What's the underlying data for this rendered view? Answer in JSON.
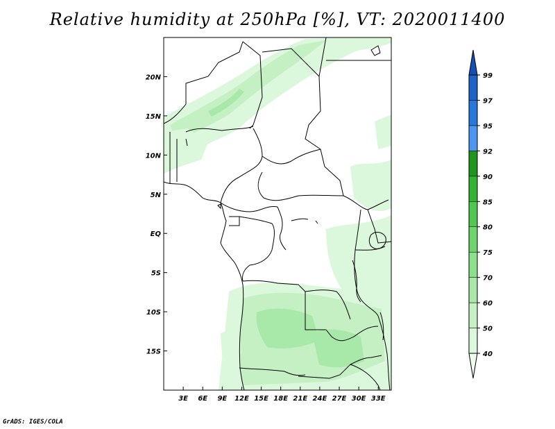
{
  "title": "Relative humidity at 250hPa [%], VT: 2020011400",
  "credit": "GrADS: IGES/COLA",
  "map": {
    "lon_range": [
      0,
      35
    ],
    "lat_range": [
      -20,
      25
    ],
    "x_ticks": [
      "3E",
      "6E",
      "9E",
      "12E",
      "15E",
      "18E",
      "21E",
      "24E",
      "27E",
      "30E",
      "33E"
    ],
    "y_ticks": [
      "20N",
      "15N",
      "10N",
      "5N",
      "EQ",
      "5S",
      "10S",
      "15S"
    ]
  },
  "colorbar": {
    "labels": [
      "40",
      "50",
      "60",
      "70",
      "75",
      "80",
      "85",
      "90",
      "92",
      "95",
      "97",
      "99"
    ],
    "colors": [
      "#f0fff0",
      "#dcf8dc",
      "#c4f0c4",
      "#a8e8a8",
      "#8ce08c",
      "#6ed46e",
      "#50c850",
      "#32b432",
      "#1e961e",
      "#4a96f0",
      "#2878dc",
      "#1e64c8",
      "#1450b4"
    ]
  }
}
